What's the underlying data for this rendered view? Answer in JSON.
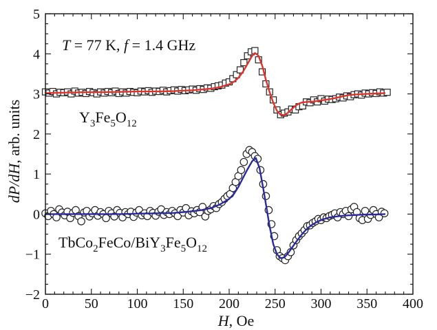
{
  "chart_data": {
    "type": "scatter",
    "title": "",
    "xlabel_main": "H",
    "xlabel_unit": ", Oe",
    "ylabel_main": "dP/dH",
    "ylabel_unit": ", arb. units",
    "xlim": [
      0,
      400
    ],
    "ylim": [
      -2,
      5
    ],
    "xticks": [
      0,
      50,
      100,
      150,
      200,
      250,
      300,
      350,
      400
    ],
    "yticks": [
      -2,
      -1,
      0,
      1,
      2,
      3,
      4,
      5
    ],
    "grid": false,
    "annotations": {
      "conditions": {
        "T": "T",
        "eq1": " = 77 K, ",
        "f": "f",
        "eq2": " = 1.4 GHz"
      },
      "yig_label": {
        "a": "Y",
        "s1": "3",
        "b": "Fe",
        "s2": "5",
        "c": "O",
        "s3": "12"
      },
      "hetero_label": {
        "a": "TbCo",
        "s1": "2",
        "b": "FeCo/BiY",
        "s2": "3",
        "c": "Fe",
        "s3": "5",
        "d": "O",
        "s4": "12"
      }
    },
    "series": [
      {
        "role": "points",
        "marker": "square",
        "color": "#222222",
        "x": [
          0,
          4,
          8,
          12,
          16,
          20,
          24,
          28,
          32,
          36,
          40,
          44,
          48,
          52,
          56,
          60,
          64,
          68,
          72,
          76,
          80,
          84,
          88,
          92,
          96,
          100,
          104,
          108,
          112,
          116,
          120,
          124,
          128,
          132,
          136,
          140,
          144,
          148,
          152,
          156,
          160,
          164,
          168,
          172,
          176,
          180,
          184,
          188,
          192,
          196,
          200,
          204,
          208,
          212,
          216,
          220,
          224,
          228,
          232,
          236,
          240,
          244,
          248,
          252,
          256,
          260,
          264,
          268,
          272,
          276,
          280,
          284,
          288,
          292,
          296,
          300,
          304,
          308,
          312,
          316,
          320,
          324,
          328,
          332,
          336,
          340,
          344,
          348,
          352,
          356,
          360,
          364,
          368,
          372
        ],
        "y": [
          3.05,
          3.02,
          3.06,
          3.0,
          3.04,
          3.03,
          3.05,
          3.0,
          3.07,
          3.02,
          3.04,
          3.01,
          3.06,
          3.03,
          3.0,
          3.05,
          3.02,
          3.06,
          3.03,
          3.07,
          3.01,
          3.05,
          3.02,
          3.06,
          3.04,
          3.03,
          3.07,
          3.05,
          3.08,
          3.04,
          3.07,
          3.06,
          3.09,
          3.05,
          3.08,
          3.1,
          3.07,
          3.11,
          3.08,
          3.1,
          3.12,
          3.09,
          3.13,
          3.11,
          3.15,
          3.14,
          3.18,
          3.2,
          3.22,
          3.27,
          3.3,
          3.38,
          3.48,
          3.6,
          3.78,
          3.95,
          4.05,
          4.08,
          3.85,
          3.55,
          3.25,
          3.05,
          2.85,
          2.6,
          2.48,
          2.52,
          2.55,
          2.62,
          2.6,
          2.68,
          2.7,
          2.8,
          2.78,
          2.85,
          2.8,
          2.88,
          2.82,
          2.87,
          2.86,
          2.88,
          2.92,
          2.9,
          2.95,
          2.93,
          2.98,
          3.0,
          2.97,
          3.02,
          3.0,
          3.03,
          3.01,
          3.05,
          3.02,
          3.04
        ]
      },
      {
        "role": "fit",
        "color": "#e0322b",
        "x": [
          0,
          20,
          40,
          60,
          80,
          100,
          120,
          140,
          160,
          170,
          180,
          190,
          200,
          205,
          210,
          215,
          220,
          225,
          228,
          232,
          236,
          240,
          244,
          248,
          252,
          256,
          260,
          264,
          268,
          272,
          276,
          280,
          286,
          292,
          298,
          304,
          310,
          316,
          322,
          330,
          340,
          350,
          360,
          370
        ],
        "y": [
          3.02,
          3.03,
          3.04,
          3.04,
          3.05,
          3.06,
          3.06,
          3.07,
          3.09,
          3.11,
          3.13,
          3.17,
          3.24,
          3.3,
          3.4,
          3.55,
          3.75,
          3.95,
          4.02,
          3.95,
          3.7,
          3.35,
          3.05,
          2.78,
          2.58,
          2.48,
          2.47,
          2.53,
          2.62,
          2.7,
          2.76,
          2.79,
          2.8,
          2.81,
          2.83,
          2.85,
          2.87,
          2.9,
          2.93,
          2.97,
          2.99,
          3.0,
          3.01,
          3.02
        ]
      },
      {
        "role": "points",
        "marker": "circle",
        "color": "#222222",
        "x": [
          0,
          3,
          6,
          9,
          12,
          15,
          18,
          21,
          24,
          27,
          30,
          33,
          36,
          39,
          42,
          45,
          48,
          51,
          54,
          57,
          60,
          63,
          66,
          69,
          72,
          75,
          78,
          81,
          84,
          87,
          90,
          93,
          96,
          99,
          102,
          105,
          108,
          111,
          114,
          117,
          120,
          123,
          126,
          129,
          132,
          135,
          138,
          141,
          144,
          147,
          150,
          153,
          156,
          159,
          162,
          165,
          168,
          171,
          174,
          177,
          180,
          183,
          186,
          189,
          192,
          195,
          198,
          201,
          204,
          207,
          210,
          213,
          216,
          219,
          222,
          225,
          228,
          231,
          234,
          237,
          240,
          243,
          246,
          249,
          252,
          255,
          258,
          261,
          264,
          267,
          270,
          273,
          276,
          279,
          282,
          285,
          288,
          291,
          294,
          297,
          300,
          303,
          306,
          309,
          312,
          315,
          318,
          321,
          324,
          327,
          330,
          333,
          336,
          339,
          342,
          345,
          348,
          351,
          354,
          357,
          360,
          363,
          366,
          369
        ],
        "y": [
          0.02,
          -0.05,
          0.08,
          0.0,
          -0.08,
          0.12,
          0.04,
          -0.03,
          0.06,
          -0.1,
          0.03,
          0.1,
          -0.05,
          -0.18,
          0.04,
          0.08,
          -0.06,
          0.02,
          0.1,
          -0.04,
          0.05,
          0.0,
          -0.1,
          0.08,
          0.02,
          -0.06,
          0.1,
          0.03,
          -0.08,
          0.05,
          0.0,
          0.06,
          -0.07,
          0.04,
          0.1,
          -0.03,
          0.02,
          -0.05,
          0.08,
          0.03,
          -0.04,
          0.06,
          0.12,
          -0.02,
          0.05,
          0.0,
          0.08,
          0.02,
          -0.05,
          0.1,
          0.04,
          0.15,
          -0.03,
          0.07,
          0.02,
          0.1,
          0.05,
          0.18,
          -0.06,
          0.08,
          0.12,
          0.2,
          0.15,
          0.25,
          0.3,
          0.38,
          0.45,
          0.5,
          0.65,
          0.8,
          0.95,
          1.1,
          1.3,
          1.5,
          1.6,
          1.55,
          1.45,
          1.38,
          1.1,
          0.75,
          0.45,
          0.1,
          -0.25,
          -0.55,
          -0.9,
          -1.05,
          -1.1,
          -1.15,
          -1.05,
          -0.95,
          -0.78,
          -0.65,
          -0.55,
          -0.48,
          -0.4,
          -0.3,
          -0.28,
          -0.22,
          -0.18,
          -0.12,
          -0.15,
          -0.08,
          -0.1,
          -0.05,
          -0.02,
          0.02,
          -0.08,
          0.05,
          0.0,
          0.08,
          -0.05,
          0.12,
          0.18,
          0.05,
          -0.1,
          -0.15,
          0.08,
          -0.12,
          -0.02,
          0.1,
          0.0,
          -0.08,
          0.06,
          0.02
        ]
      },
      {
        "role": "fit",
        "color": "#2a2a9e",
        "x": [
          0,
          20,
          40,
          60,
          80,
          100,
          120,
          140,
          150,
          160,
          170,
          180,
          190,
          200,
          205,
          210,
          215,
          220,
          225,
          229,
          233,
          237,
          240,
          244,
          248,
          252,
          256,
          260,
          264,
          268,
          272,
          276,
          280,
          285,
          290,
          296,
          302,
          310,
          320,
          330,
          340,
          350,
          360,
          370
        ],
        "y": [
          0.0,
          0.0,
          0.0,
          0.0,
          0.0,
          0.01,
          0.02,
          0.03,
          0.05,
          0.07,
          0.1,
          0.15,
          0.24,
          0.38,
          0.5,
          0.68,
          0.9,
          1.12,
          1.32,
          1.4,
          1.15,
          0.65,
          0.25,
          -0.3,
          -0.75,
          -1.0,
          -1.1,
          -1.08,
          -0.98,
          -0.85,
          -0.72,
          -0.6,
          -0.48,
          -0.36,
          -0.27,
          -0.19,
          -0.13,
          -0.08,
          -0.05,
          -0.03,
          -0.02,
          -0.01,
          -0.01,
          0.0
        ]
      }
    ]
  }
}
